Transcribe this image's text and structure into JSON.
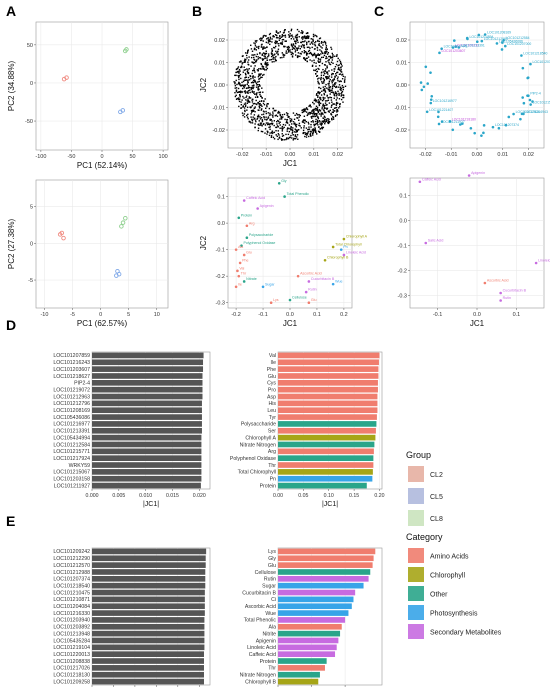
{
  "panels": {
    "A": "A",
    "B": "B",
    "C": "C",
    "D": "D",
    "E": "E"
  },
  "pca": {
    "top": {
      "xlabel": "PC1 (52.14%)",
      "ylabel": "PC2 (34.88%)",
      "xticks": [
        -100,
        -50,
        0,
        50,
        100
      ],
      "yticks": [
        -50,
        0,
        50
      ],
      "xlim": [
        -108,
        108
      ],
      "ylim": [
        -88,
        80
      ],
      "points": [
        {
          "g": "CL2",
          "x": -62,
          "y": 5
        },
        {
          "g": "CL2",
          "x": -58,
          "y": 7
        },
        {
          "g": "CL5",
          "x": 30,
          "y": -38
        },
        {
          "g": "CL5",
          "x": 34,
          "y": -36
        },
        {
          "g": "CL8",
          "x": 38,
          "y": 42
        },
        {
          "g": "CL8",
          "x": 40,
          "y": 44
        }
      ]
    },
    "bottom": {
      "xlabel": "PC1 (62.57%)",
      "ylabel": "PC2 (27.38%)",
      "xticks": [
        -10,
        -5,
        0,
        5,
        10
      ],
      "yticks": [
        -5,
        0,
        5
      ],
      "xlim": [
        -11.5,
        12
      ],
      "ylim": [
        -8.8,
        8.6
      ],
      "points": [
        {
          "g": "CL2",
          "x": -7.2,
          "y": 1.2
        },
        {
          "g": "CL2",
          "x": -6.6,
          "y": 0.7
        },
        {
          "g": "CL2",
          "x": -6.9,
          "y": 1.4
        },
        {
          "g": "CL5",
          "x": 3.0,
          "y": -3.8
        },
        {
          "g": "CL5",
          "x": 3.3,
          "y": -4.2
        },
        {
          "g": "CL5",
          "x": 2.8,
          "y": -4.4
        },
        {
          "g": "CL8",
          "x": 4.0,
          "y": 2.8
        },
        {
          "g": "CL8",
          "x": 4.4,
          "y": 3.4
        },
        {
          "g": "CL8",
          "x": 3.7,
          "y": 2.3
        }
      ]
    }
  },
  "jc_b_top": {
    "xlabel": "JC1",
    "ylabel": "JC2",
    "xticks": [
      -0.02,
      -0.01,
      0,
      0.01,
      0.02
    ],
    "xtick_labels": [
      "-0.02",
      "-0.01",
      "0.00",
      "0.01",
      "0.02"
    ],
    "yticks": [
      -0.02,
      -0.01,
      0,
      0.01,
      0.02
    ],
    "ytick_labels": [
      "-0.02",
      "-0.01",
      "0.00",
      "0.01",
      "0.02"
    ],
    "xlim": [
      -0.026,
      0.026
    ],
    "ylim": [
      -0.028,
      0.028
    ],
    "points_note": "ring"
  },
  "jc_b_bottom": {
    "xlabel": "JC1",
    "ylabel": "JC2",
    "xticks": [
      -0.2,
      -0.1,
      0,
      0.1,
      0.2
    ],
    "xtick_labels": [
      "-0.2",
      "-0.1",
      "0.0",
      "0.1",
      "0.2"
    ],
    "yticks": [
      -0.3,
      -0.2,
      -0.1,
      0,
      0.1
    ],
    "ytick_labels": [
      "-0.3",
      "-0.2",
      "-0.1",
      "0.0",
      "0.1"
    ],
    "xlim": [
      -0.23,
      0.23
    ],
    "ylim": [
      -0.32,
      0.17
    ],
    "points": [
      {
        "t": "Gly",
        "x": -0.04,
        "y": 0.15,
        "c": "Other"
      },
      {
        "t": "Total Phenolic",
        "x": -0.02,
        "y": 0.1,
        "c": "Other"
      },
      {
        "t": "Caffeic Acid",
        "x": -0.17,
        "y": 0.085,
        "c": "Secondary Metabolites"
      },
      {
        "t": "Apigenin",
        "x": -0.12,
        "y": 0.055,
        "c": "Secondary Metabolites"
      },
      {
        "t": "Protein",
        "x": -0.19,
        "y": 0.02,
        "c": "Other"
      },
      {
        "t": "Arg",
        "x": -0.16,
        "y": -0.01,
        "c": "Amino Acids"
      },
      {
        "t": "Polysaccharide",
        "x": -0.16,
        "y": -0.055,
        "c": "Other"
      },
      {
        "t": "Polyphenol Oxidase",
        "x": -0.18,
        "y": -0.085,
        "c": "Other"
      },
      {
        "t": "Ala",
        "x": -0.2,
        "y": -0.1,
        "c": "Amino Acids"
      },
      {
        "t": "Glu",
        "x": -0.17,
        "y": -0.12,
        "c": "Amino Acids"
      },
      {
        "t": "Phe",
        "x": -0.185,
        "y": -0.15,
        "c": "Amino Acids"
      },
      {
        "t": "Val",
        "x": -0.195,
        "y": -0.18,
        "c": "Amino Acids"
      },
      {
        "t": "Nitrate",
        "x": -0.17,
        "y": -0.22,
        "c": "Other"
      },
      {
        "t": "Ile",
        "x": -0.2,
        "y": -0.24,
        "c": "Amino Acids"
      },
      {
        "t": "Thr",
        "x": -0.19,
        "y": -0.2,
        "c": "Amino Acids"
      },
      {
        "t": "Sugar",
        "x": -0.1,
        "y": -0.24,
        "c": "Photosynthesis"
      },
      {
        "t": "Lys",
        "x": -0.07,
        "y": -0.3,
        "c": "Amino Acids"
      },
      {
        "t": "Cellulose",
        "x": 0.0,
        "y": -0.29,
        "c": "Other"
      },
      {
        "t": "Ascorbic Acid",
        "x": 0.03,
        "y": -0.2,
        "c": "Amino Acids"
      },
      {
        "t": "Cucurbitacin B",
        "x": 0.07,
        "y": -0.22,
        "c": "Secondary Metabolites"
      },
      {
        "t": "Rutin",
        "x": 0.06,
        "y": -0.26,
        "c": "Secondary Metabolites"
      },
      {
        "t": "Glu2",
        "x": 0.07,
        "y": -0.3,
        "c": "Amino Acids"
      },
      {
        "t": "Wue",
        "x": 0.16,
        "y": -0.23,
        "c": "Photosynthesis"
      },
      {
        "t": "Linoleic Acid",
        "x": 0.2,
        "y": -0.12,
        "c": "Secondary Metabolites"
      },
      {
        "t": "Chlorophyll A",
        "x": 0.2,
        "y": -0.06,
        "c": "Chlorophyll"
      },
      {
        "t": "Chlorophyll B",
        "x": 0.13,
        "y": -0.14,
        "c": "Chlorophyll"
      },
      {
        "t": "Total Chlorophyll",
        "x": 0.16,
        "y": -0.09,
        "c": "Chlorophyll"
      },
      {
        "t": "Pn",
        "x": 0.19,
        "y": -0.1,
        "c": "Photosynthesis"
      }
    ],
    "labels": [
      "Gly",
      "Total Phenolic",
      "Caffeic Acid",
      "Apigenin",
      "Protein",
      "Arg",
      "Polysaccharide",
      "Ala",
      "Glu",
      "Phe",
      "Val",
      "Nitrate",
      "Ile",
      "Thr",
      "Sugar",
      "Lys",
      "Cellulose",
      "Ascorbic Acid",
      "Cucurbitacin B",
      "Rutin",
      "Wue",
      "Linoleic Acid",
      "Chlorophyll A",
      "Chlorophyll B",
      "Total Chlorophyll",
      "Pn"
    ]
  },
  "jc_c_top": {
    "xticks": [
      -0.02,
      -0.01,
      0,
      0.01,
      0.02
    ],
    "xtick_labels": [
      "-0.02",
      "-0.01",
      "0.00",
      "0.01",
      "0.02"
    ],
    "yticks": [
      -0.02,
      -0.01,
      0,
      0.01,
      0.02
    ],
    "ytick_labels": [
      "-0.02",
      "-0.01",
      "0.00",
      "0.01",
      "0.02"
    ],
    "xlim": [
      -0.026,
      0.026
    ],
    "ylim": [
      -0.028,
      0.028
    ],
    "labels": [
      "LOC101209232",
      "LOC101218180",
      "LOC101203607",
      "LOC101217441",
      "LOC101216943",
      "LOC101212963",
      "LOC101207374",
      "LOC101218540",
      "LOC101214894",
      "LOC101213391",
      "LOC101215771",
      "LOC101212584",
      "LOC101216977",
      "LOC101203158",
      "LOC101221407",
      "LOC101208169",
      "LOC101207000",
      "LOC105436086",
      "PIP2-4",
      "LOC101217924",
      "LOC101211927"
    ]
  },
  "jc_c_bottom": {
    "xticks": [
      -0.1,
      0,
      0.1
    ],
    "xtick_labels": [
      "-0.1",
      "0.0",
      "0.1"
    ],
    "yticks": [
      -0.3,
      -0.2,
      -0.1,
      0,
      0.1
    ],
    "ytick_labels": [
      "-0.3",
      "-0.2",
      "-0.1",
      "0.0",
      "0.1"
    ],
    "xlim": [
      -0.17,
      0.17
    ],
    "ylim": [
      -0.35,
      0.17
    ],
    "points": [
      {
        "t": "Caffeic Acid",
        "x": -0.145,
        "y": 0.155,
        "c": "Secondary Metabolites"
      },
      {
        "t": "Apigenin",
        "x": -0.02,
        "y": 0.18,
        "c": "Secondary Metabolites"
      },
      {
        "t": "Salic Acid",
        "x": -0.13,
        "y": -0.09,
        "c": "Secondary Metabolites"
      },
      {
        "t": "Ascorbic Acid",
        "x": 0.02,
        "y": -0.25,
        "c": "Amino Acids"
      },
      {
        "t": "Cucurbitacin B",
        "x": 0.06,
        "y": -0.29,
        "c": "Secondary Metabolites"
      },
      {
        "t": "Rutin",
        "x": 0.06,
        "y": -0.32,
        "c": "Secondary Metabolites"
      },
      {
        "t": "Linoleic Acid",
        "x": 0.15,
        "y": -0.17,
        "c": "Secondary Metabolites"
      }
    ]
  },
  "legend": {
    "group_title": "Group",
    "groups": [
      {
        "name": "CL2",
        "color": "#e8b7aa"
      },
      {
        "name": "CL5",
        "color": "#b7c0e0"
      },
      {
        "name": "CL8",
        "color": "#cfe6c3"
      }
    ],
    "category_title": "Category",
    "categories": [
      {
        "name": "Amino Acids",
        "color": "#f07d6e"
      },
      {
        "name": "Chlorophyll",
        "color": "#a6a517"
      },
      {
        "name": "Other",
        "color": "#2aa58a"
      },
      {
        "name": "Photosynthesis",
        "color": "#37a4e8"
      },
      {
        "name": "Secondary Metabolites",
        "color": "#c76be0"
      }
    ]
  },
  "chart_data": [
    {
      "type": "bar",
      "panel": "D-left",
      "xlabel": "|JC1|",
      "xticks": [
        0,
        0.005,
        0.01,
        0.015,
        0.02
      ],
      "xtick_labels": [
        "0.000",
        "0.005",
        "0.010",
        "0.015",
        "0.020"
      ],
      "xlim": [
        0,
        0.022
      ],
      "categories": [
        "LOC101207859",
        "LOC101216243",
        "LOC101203607",
        "LOC101218627",
        "PIP2-4",
        "LOC101219072",
        "LOC101212963",
        "LOC101212796",
        "LOC101208169",
        "LOC105436086",
        "LOC101216977",
        "LOC101213391",
        "LOC105434994",
        "LOC101212584",
        "LOC101215771",
        "LOC101217924",
        "WRKY59",
        "LOC101215067",
        "LOC101203158",
        "LOC101211927"
      ],
      "values": [
        0.0208,
        0.0207,
        0.0207,
        0.0206,
        0.0206,
        0.0206,
        0.0206,
        0.0205,
        0.0205,
        0.0205,
        0.0205,
        0.0205,
        0.0204,
        0.0204,
        0.0204,
        0.0204,
        0.0204,
        0.0204,
        0.0204,
        0.0203
      ]
    },
    {
      "type": "bar",
      "panel": "D-right",
      "xlabel": "|JC1|",
      "xticks": [
        0,
        0.05,
        0.1,
        0.15,
        0.2
      ],
      "xtick_labels": [
        "0.00",
        "0.05",
        "0.10",
        "0.15",
        "0.20"
      ],
      "xlim": [
        0,
        0.205
      ],
      "categories": [
        "Val",
        "Ile",
        "Phe",
        "Glu",
        "Cys",
        "Pro",
        "Asp",
        "His",
        "Leu",
        "Tyr",
        "Polysaccharide",
        "Ser",
        "Chlorophyll A",
        "Nitrate Nitrogen",
        "Arg",
        "Polyphenol Oxidase",
        "Thr",
        "Total Chlorophyll",
        "Pn",
        "Protein"
      ],
      "values": [
        0.2,
        0.199,
        0.198,
        0.198,
        0.197,
        0.197,
        0.196,
        0.196,
        0.196,
        0.195,
        0.194,
        0.193,
        0.192,
        0.19,
        0.189,
        0.188,
        0.188,
        0.187,
        0.186,
        0.175
      ],
      "category_of": [
        "Amino Acids",
        "Amino Acids",
        "Amino Acids",
        "Amino Acids",
        "Amino Acids",
        "Amino Acids",
        "Amino Acids",
        "Amino Acids",
        "Amino Acids",
        "Amino Acids",
        "Other",
        "Amino Acids",
        "Chlorophyll",
        "Other",
        "Amino Acids",
        "Other",
        "Amino Acids",
        "Chlorophyll",
        "Photosynthesis",
        "Other"
      ]
    },
    {
      "type": "bar",
      "panel": "E-left",
      "xlabel": "|JC2|",
      "xticks": [
        0,
        0.005,
        0.01,
        0.015,
        0.02,
        0.025
      ],
      "xtick_labels": [
        "0.000",
        "0.005",
        "0.010",
        "0.015",
        "0.020",
        "0.025"
      ],
      "xlim": [
        0,
        0.0275
      ],
      "categories": [
        "LOC101209242",
        "LOC101212290",
        "LOC101212570",
        "LOC101212988",
        "LOC101207374",
        "LOC101218540",
        "LOC101210475",
        "LOC101210871",
        "LOC101204084",
        "LOC101216330",
        "LOC101203940",
        "LOC101203892",
        "LOC101213948",
        "LOC105435284",
        "LOC101219104",
        "LOC101220013",
        "LOC101208838",
        "LOC101217026",
        "LOC101218130",
        "LOC101209258"
      ],
      "values": [
        0.0266,
        0.0265,
        0.0265,
        0.0264,
        0.0264,
        0.0264,
        0.0263,
        0.0263,
        0.0263,
        0.0263,
        0.0262,
        0.0262,
        0.0262,
        0.0262,
        0.0262,
        0.0261,
        0.0261,
        0.0261,
        0.0261,
        0.0261
      ]
    },
    {
      "type": "bar",
      "panel": "E-right",
      "xlabel": "|JC2|",
      "xticks": [
        0,
        0.1,
        0.2
      ],
      "xtick_labels": [
        "0.0",
        "0.1",
        "0.2"
      ],
      "xlim": [
        0,
        0.31
      ],
      "categories": [
        "Lys",
        "Gly",
        "Glu",
        "Cellulose",
        "Rutin",
        "Sugar",
        "Cucurbitacin B",
        "Ci",
        "Ascorbic Acid",
        "Wue",
        "Total Phenolic",
        "Ala",
        "Nitrite",
        "Apigenin",
        "Linoleic Acid",
        "Caffeic Acid",
        "Protein",
        "Thr",
        "Nitrate Nitrogen",
        "Chlorophyll B"
      ],
      "values": [
        0.29,
        0.285,
        0.282,
        0.275,
        0.27,
        0.255,
        0.23,
        0.225,
        0.22,
        0.21,
        0.2,
        0.19,
        0.185,
        0.18,
        0.175,
        0.17,
        0.145,
        0.14,
        0.125,
        0.12
      ],
      "category_of": [
        "Amino Acids",
        "Amino Acids",
        "Amino Acids",
        "Other",
        "Secondary Metabolites",
        "Photosynthesis",
        "Secondary Metabolites",
        "Photosynthesis",
        "Photosynthesis",
        "Photosynthesis",
        "Secondary Metabolites",
        "Amino Acids",
        "Other",
        "Secondary Metabolites",
        "Secondary Metabolites",
        "Secondary Metabolites",
        "Other",
        "Amino Acids",
        "Other",
        "Chlorophyll"
      ]
    }
  ]
}
